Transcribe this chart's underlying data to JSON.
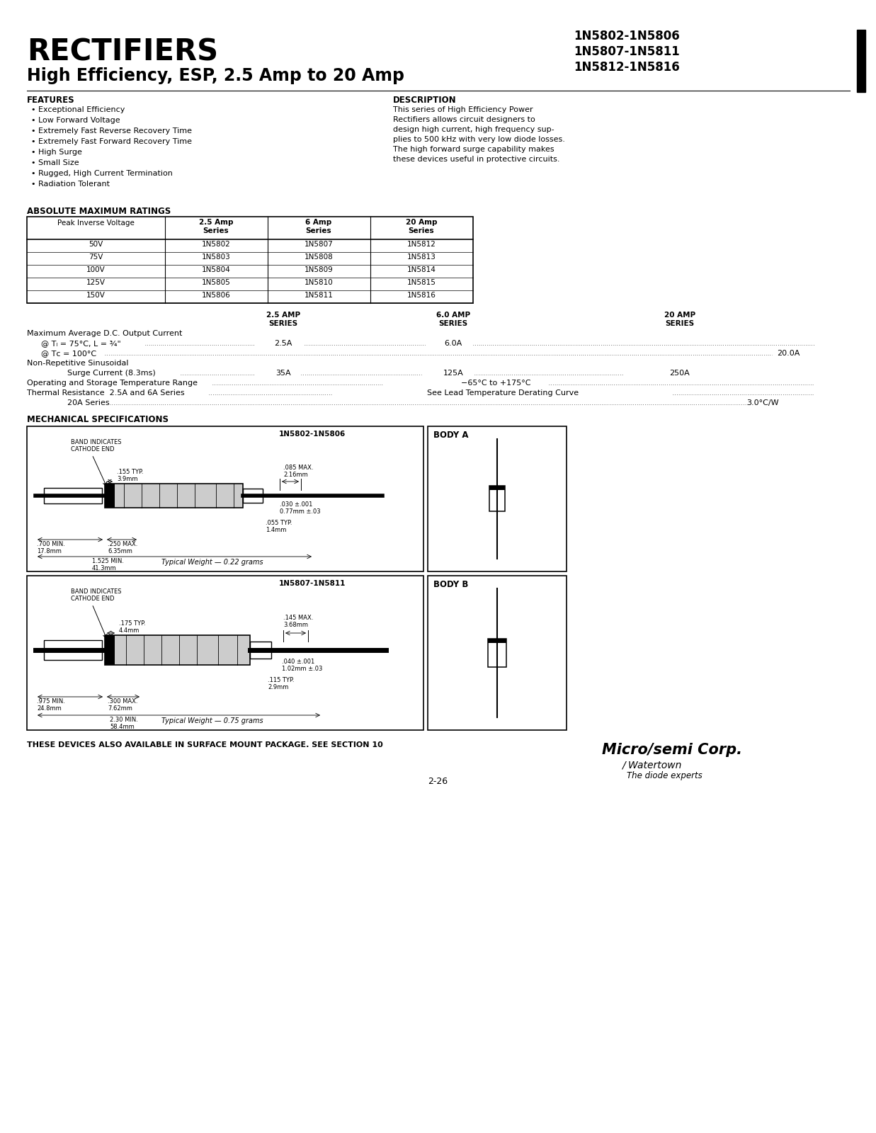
{
  "title_main": "RECTIFIERS",
  "title_sub": "High Efficiency, ESP, 2.5 Amp to 20 Amp",
  "part_numbers_right": [
    "1N5802-1N5806",
    "1N5807-1N5811",
    "1N5812-1N5816"
  ],
  "features_title": "FEATURES",
  "features": [
    "Exceptional Efficiency",
    "Low Forward Voltage",
    "Extremely Fast Reverse Recovery Time",
    "Extremely Fast Forward Recovery Time",
    "High Surge",
    "Small Size",
    "Rugged, High Current Termination",
    "Radiation Tolerant"
  ],
  "description_title": "DESCRIPTION",
  "description_lines": [
    "This series of High Efficiency Power",
    "Rectifiers allows circuit designers to",
    "design high current, high frequency sup-",
    "plies to 500 kHz with very low diode losses.",
    "The high forward surge capability makes",
    "these devices useful in protective circuits."
  ],
  "abs_max_title": "ABSOLUTE MAXIMUM RATINGS",
  "voltages": [
    "50V",
    "75V",
    "100V",
    "125V",
    "150V"
  ],
  "col_25amp": [
    "1N5802",
    "1N5803",
    "1N5804",
    "1N5805",
    "1N5806"
  ],
  "col_6amp": [
    "1N5807",
    "1N5808",
    "1N5809",
    "1N5810",
    "1N5811"
  ],
  "col_20amp": [
    "1N5812",
    "1N5813",
    "1N5814",
    "1N5815",
    "1N5816"
  ],
  "mech_title": "MECHANICAL SPECIFICATIONS",
  "footer": "THESE DEVICES ALSO AVAILABLE IN SURFACE MOUNT PACKAGE. SEE SECTION 10",
  "page_num": "2-26",
  "bg_color": "#ffffff"
}
